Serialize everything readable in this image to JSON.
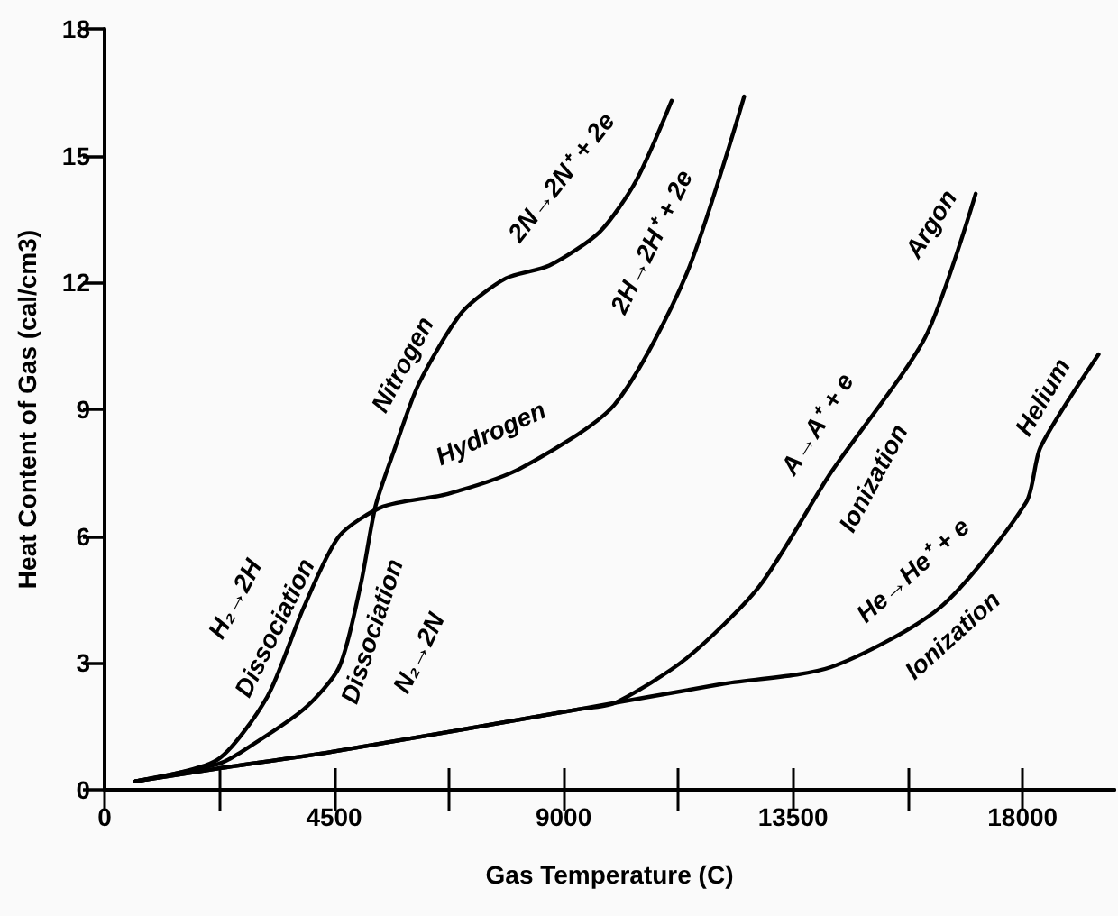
{
  "chart_data": {
    "type": "line",
    "xlabel": "Gas Temperature (C)",
    "ylabel": "Heat Content of Gas (cal/cm3)",
    "xlim": [
      0,
      19800
    ],
    "ylim": [
      0,
      18
    ],
    "xticks": [
      0,
      {
        "value": 2250,
        "label": null
      },
      4500,
      {
        "value": 6750,
        "label": null
      },
      9000,
      {
        "value": 11250,
        "label": null
      },
      13500,
      {
        "value": 15750,
        "label": null
      },
      18000
    ],
    "yticks": [
      0,
      3,
      6,
      9,
      12,
      15,
      18
    ],
    "grid": false,
    "marker": "none",
    "line_style": "solid",
    "series": [
      {
        "color": "#000000",
        "x": [
          600,
          2200,
          2620,
          3900,
          4600,
          5030,
          5310,
          5670,
          6160,
          7010,
          7870,
          8720,
          9710,
          10420,
          11120
        ],
        "values": [
          0.2,
          0.6,
          0.85,
          1.9,
          2.9,
          4.9,
          6.7,
          8.0,
          9.6,
          11.3,
          12.1,
          12.4,
          13.2,
          14.4,
          16.3
        ]
      },
      {
        "color": "#000000",
        "x": [
          600,
          2200,
          3190,
          3900,
          4600,
          5460,
          6730,
          8150,
          9990,
          11410,
          12540
        ],
        "values": [
          0.2,
          0.7,
          2.2,
          4.3,
          6.0,
          6.7,
          7.0,
          7.6,
          9.1,
          12.2,
          16.4
        ]
      },
      {
        "color": "#000000",
        "x": [
          600,
          2200,
          4460,
          9280,
          10000,
          11400,
          12830,
          14240,
          16090,
          17080
        ],
        "values": [
          0.2,
          0.5,
          0.9,
          1.9,
          2.05,
          3.1,
          4.8,
          7.5,
          10.7,
          14.1
        ]
      },
      {
        "color": "#000000",
        "x": [
          600,
          2200,
          4460,
          9280,
          12100,
          14240,
          16370,
          18070,
          18350,
          19490
        ],
        "values": [
          0.2,
          0.5,
          0.9,
          1.9,
          2.5,
          2.9,
          4.3,
          6.8,
          8.1,
          10.3
        ]
      }
    ],
    "annotations": [
      "H₂→2H",
      "Dissociation",
      "Dissociation",
      "N₂→2N",
      "Nitrogen",
      "2N→2N⁺ + 2e",
      "Hydrogen",
      "2H→2H⁺ + 2e",
      "A→A⁺ + e",
      "Argon",
      "Ionization",
      "He→He⁺ + e",
      "Helium",
      "Ionization"
    ]
  }
}
